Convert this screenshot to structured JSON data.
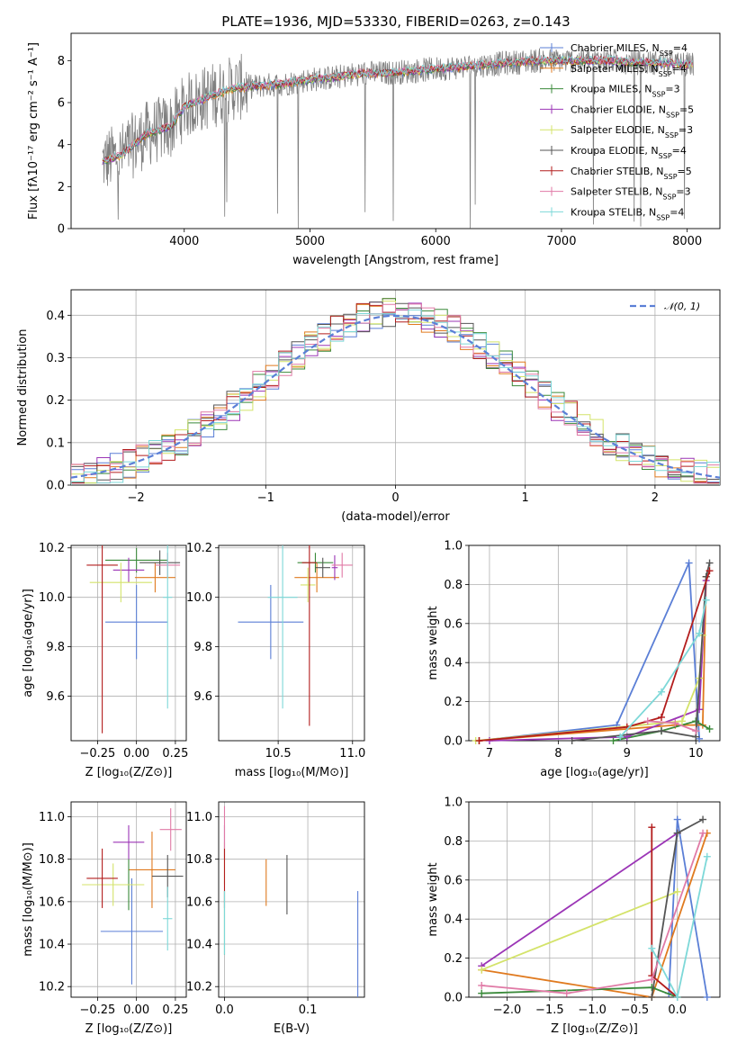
{
  "figure": {
    "title": "PLATE=1936, MJD=53330, FIBERID=0263, z=0.143"
  },
  "colors": [
    "#5b7fd6",
    "#e07a1f",
    "#3a8a3a",
    "#9b35b6",
    "#d4e36a",
    "#555555",
    "#b31d1d",
    "#e07aa6",
    "#7dd8d8"
  ],
  "chart_data": [
    {
      "id": "spectrum",
      "type": "line",
      "xlabel": "wavelength [Angstrom, rest frame]",
      "ylabel": "Flux [fλ10⁻¹⁷ erg cm⁻² s⁻¹ A⁻¹]",
      "xlim": [
        3100,
        8260
      ],
      "ylim": [
        0,
        9.3
      ],
      "xticks": [
        4000,
        5000,
        6000,
        7000,
        8000
      ],
      "yticks": [
        0,
        2,
        4,
        6,
        8
      ],
      "grid": false,
      "legend_position": "top-right",
      "legend": [
        "Chabrier MILES, N_SSP=4",
        "Salpeter MILES, N_SSP=4",
        "Kroupa MILES, N_SSP=3",
        "Chabrier ELODIE, N_SSP=5",
        "Salpeter ELODIE, N_SSP=3",
        "Kroupa ELODIE, N_SSP=4",
        "Chabrier STELIB, N_SSP=5",
        "Salpeter STELIB, N_SSP=3",
        "Kroupa STELIB, N_SSP=4"
      ],
      "data_trend": {
        "x": [
          3350,
          3500,
          3700,
          3900,
          4000,
          4200,
          4400,
          4600,
          4800,
          5000,
          5200,
          5400,
          5600,
          5800,
          6000,
          6200,
          6400,
          6600,
          6800,
          7000,
          7200,
          7400,
          7600,
          7800,
          8000
        ],
        "y": [
          3.2,
          3.5,
          4.5,
          4.9,
          5.8,
          6.3,
          6.7,
          6.8,
          6.9,
          7.1,
          7.2,
          7.4,
          7.4,
          7.5,
          7.6,
          7.7,
          7.8,
          7.9,
          8.0,
          8.0,
          8.0,
          8.0,
          7.9,
          7.9,
          7.8
        ]
      }
    },
    {
      "id": "residuals",
      "type": "histogram",
      "xlabel": "(data-model)/error",
      "ylabel": "Normed distribution",
      "xlim": [
        -2.5,
        2.5
      ],
      "ylim": [
        0,
        0.46
      ],
      "xticks": [
        -2,
        -1,
        0,
        1,
        2
      ],
      "yticks": [
        0.0,
        0.1,
        0.2,
        0.3,
        0.4
      ],
      "grid": true,
      "legend_position": "top-right",
      "legend": [
        "𝒩(0, 1)"
      ],
      "bin_width": 0.1
    },
    {
      "id": "age-vs-Z",
      "type": "scatter",
      "xlabel": "Z [log₁₀(Z/Z⊙)]",
      "ylabel": "age  [log₁₀(age/yr)]",
      "xlim": [
        -0.42,
        0.32
      ],
      "ylim": [
        9.42,
        10.21
      ],
      "xticks": [
        -0.25,
        0.0,
        0.25
      ],
      "xticklabels": [
        "−0.25",
        "0.00",
        "0.25"
      ],
      "yticks": [
        9.6,
        9.8,
        10.0,
        10.2
      ],
      "yticklabels": [
        "9.6",
        "9.8",
        "10.0",
        "10.2"
      ],
      "grid": true,
      "points": [
        {
          "x": 0.0,
          "y": 9.9,
          "ex": 0.2,
          "ey": 0.15
        },
        {
          "x": 0.12,
          "y": 10.08,
          "ex": 0.13,
          "ey": 0.06
        },
        {
          "x": 0.0,
          "y": 10.15,
          "ex": 0.2,
          "ey": 0.05
        },
        {
          "x": -0.05,
          "y": 10.11,
          "ex": 0.1,
          "ey": 0.05
        },
        {
          "x": -0.1,
          "y": 10.06,
          "ex": 0.2,
          "ey": 0.08
        },
        {
          "x": 0.15,
          "y": 10.14,
          "ex": 0.13,
          "ey": 0.05
        },
        {
          "x": -0.22,
          "y": 10.13,
          "ex": 0.1,
          "ey": 0.68
        },
        {
          "x": 0.2,
          "y": 10.13,
          "ex": 0.08,
          "ey": 0.05
        },
        {
          "x": 0.2,
          "y": 10.0,
          "ex": 0.03,
          "ey": 0.45
        }
      ]
    },
    {
      "id": "age-vs-mass",
      "type": "scatter",
      "xlabel": "mass [log₁₀(M/M⊙)]",
      "ylabel": "",
      "xlim": [
        10.1,
        11.08
      ],
      "ylim": [
        9.42,
        10.21
      ],
      "xticks": [
        10.5,
        11.0
      ],
      "xticklabels": [
        "10.5",
        "11.0"
      ],
      "yticks": [
        9.6,
        9.8,
        10.0,
        10.2
      ],
      "yticklabels": [
        "9.6",
        "9.8",
        "10.0",
        "10.2"
      ],
      "grid": true,
      "points": [
        {
          "x": 10.45,
          "y": 9.9,
          "ex": 0.22,
          "ey": 0.15
        },
        {
          "x": 10.76,
          "y": 10.08,
          "ex": 0.15,
          "ey": 0.06
        },
        {
          "x": 10.75,
          "y": 10.14,
          "ex": 0.12,
          "ey": 0.04
        },
        {
          "x": 10.88,
          "y": 10.12,
          "ex": 0.02,
          "ey": 0.05
        },
        {
          "x": 10.7,
          "y": 10.05,
          "ex": 0.05,
          "ey": 0.07
        },
        {
          "x": 10.8,
          "y": 10.12,
          "ex": 0.05,
          "ey": 0.04
        },
        {
          "x": 10.71,
          "y": 10.14,
          "ex": 0.05,
          "ey": 0.66
        },
        {
          "x": 10.93,
          "y": 10.13,
          "ex": 0.07,
          "ey": 0.05
        },
        {
          "x": 10.53,
          "y": 10.0,
          "ex": 0.1,
          "ey": 0.45
        }
      ]
    },
    {
      "id": "mass-weight-vs-age",
      "type": "line",
      "xlabel": "age  [log₁₀(age/yr)]",
      "ylabel": "mass weight",
      "xlim": [
        6.7,
        10.35
      ],
      "ylim": [
        0,
        1.0
      ],
      "xticks": [
        7,
        8,
        9,
        10
      ],
      "yticks": [
        0.0,
        0.2,
        0.4,
        0.6,
        0.8,
        1.0
      ],
      "grid": true,
      "series": [
        {
          "x": [
            6.85,
            8.85,
            9.9,
            10.05
          ],
          "y": [
            0.0,
            0.08,
            0.91,
            0.01
          ]
        },
        {
          "x": [
            6.85,
            9.7,
            10.1,
            10.15
          ],
          "y": [
            0.0,
            0.08,
            0.08,
            0.84
          ]
        },
        {
          "x": [
            8.8,
            9.5,
            10.0,
            10.2
          ],
          "y": [
            0.0,
            0.05,
            0.1,
            0.06
          ]
        },
        {
          "x": [
            7.0,
            9.0,
            10.05,
            10.15
          ],
          "y": [
            0.0,
            0.02,
            0.16,
            0.82
          ]
        },
        {
          "x": [
            6.8,
            9.8,
            10.05,
            10.1
          ],
          "y": [
            0.0,
            0.1,
            0.32,
            0.54
          ]
        },
        {
          "x": [
            8.2,
            9.5,
            10.0,
            10.15,
            10.2
          ],
          "y": [
            0.0,
            0.05,
            0.02,
            0.84,
            0.91
          ]
        },
        {
          "x": [
            6.85,
            9.0,
            9.5,
            10.2
          ],
          "y": [
            0.0,
            0.07,
            0.12,
            0.87
          ]
        },
        {
          "x": [
            9.3,
            9.7,
            10.0
          ],
          "y": [
            0.1,
            0.09,
            0.05
          ]
        },
        {
          "x": [
            8.9,
            9.5,
            10.05,
            10.15
          ],
          "y": [
            0.02,
            0.25,
            0.55,
            0.72
          ]
        }
      ]
    },
    {
      "id": "mass-vs-Z",
      "type": "scatter",
      "xlabel": "Z [log₁₀(Z/Z⊙)]",
      "ylabel": "mass [log₁₀(M/M⊙)]",
      "xlim": [
        -0.42,
        0.32
      ],
      "ylim": [
        10.15,
        11.07
      ],
      "xticks": [
        -0.25,
        0.0,
        0.25
      ],
      "xticklabels": [
        "−0.25",
        "0.00",
        "0.25"
      ],
      "yticks": [
        10.2,
        10.4,
        10.6,
        10.8,
        11.0
      ],
      "yticklabels": [
        "10.2",
        "10.4",
        "10.6",
        "10.8",
        "11.0"
      ],
      "grid": true,
      "points": [
        {
          "x": -0.03,
          "y": 10.46,
          "ex": 0.2,
          "ey": 0.25
        },
        {
          "x": 0.1,
          "y": 10.75,
          "ex": 0.15,
          "ey": 0.18
        },
        {
          "x": -0.05,
          "y": 10.68,
          "ex": 0.05,
          "ey": 0.12
        },
        {
          "x": -0.05,
          "y": 10.88,
          "ex": 0.1,
          "ey": 0.08
        },
        {
          "x": -0.15,
          "y": 10.68,
          "ex": 0.2,
          "ey": 0.1
        },
        {
          "x": 0.2,
          "y": 10.72,
          "ex": 0.1,
          "ey": 0.1
        },
        {
          "x": -0.22,
          "y": 10.71,
          "ex": 0.1,
          "ey": 0.14
        },
        {
          "x": 0.22,
          "y": 10.94,
          "ex": 0.07,
          "ey": 0.1
        },
        {
          "x": 0.2,
          "y": 10.52,
          "ex": 0.03,
          "ey": 0.15
        }
      ]
    },
    {
      "id": "mass-vs-EBV",
      "type": "scatter",
      "xlabel": "E(B-V)",
      "ylabel": "",
      "xlim": [
        -0.007,
        0.168
      ],
      "ylim": [
        10.15,
        11.07
      ],
      "xticks": [
        0.0,
        0.1
      ],
      "xticklabels": [
        "0.0",
        "0.1"
      ],
      "yticks": [
        10.2,
        10.4,
        10.6,
        10.8,
        11.0
      ],
      "yticklabels": [
        "10.2",
        "10.4",
        "10.6",
        "10.8",
        "11.0"
      ],
      "grid": true,
      "points": [
        {
          "x": 0.16,
          "y": 10.4,
          "ex": 0.0,
          "ey": 0.25
        },
        {
          "x": 0.05,
          "y": 10.69,
          "ex": 0.0,
          "ey": 0.11
        },
        {
          "x": 0.0,
          "y": 10.5,
          "ex": 0.0,
          "ey": 0.15
        },
        {
          "x": 0.0,
          "y": 10.88,
          "ex": 0.0,
          "ey": 0.08
        },
        {
          "x": 0.0,
          "y": 10.78,
          "ex": 0.0,
          "ey": 0.1
        },
        {
          "x": 0.075,
          "y": 10.68,
          "ex": 0.0,
          "ey": 0.14
        },
        {
          "x": 0.0,
          "y": 10.71,
          "ex": 0.0,
          "ey": 0.14
        },
        {
          "x": 0.0,
          "y": 10.95,
          "ex": 0.0,
          "ey": 0.1
        },
        {
          "x": 0.0,
          "y": 10.5,
          "ex": 0.0,
          "ey": 0.15
        }
      ]
    },
    {
      "id": "mass-weight-vs-Z",
      "type": "line",
      "xlabel": "Z [log₁₀(Z/Z⊙)]",
      "ylabel": "mass weight",
      "xlim": [
        -2.45,
        0.5
      ],
      "ylim": [
        0,
        1.0
      ],
      "xticks": [
        -2.0,
        -1.5,
        -1.0,
        -0.5,
        0.0
      ],
      "xticklabels": [
        "−2.0",
        "−1.5",
        "−1.0",
        "−0.5",
        "0.0"
      ],
      "yticks": [
        0.0,
        0.2,
        0.4,
        0.6,
        0.8,
        1.0
      ],
      "grid": true,
      "series": [
        {
          "x": [
            -0.1,
            0.0,
            0.35
          ],
          "y": [
            0.02,
            0.91,
            0.0
          ]
        },
        {
          "x": [
            -2.3,
            -0.3,
            0.35
          ],
          "y": [
            0.14,
            0.0,
            0.84
          ]
        },
        {
          "x": [
            -2.3,
            -0.3,
            0.0
          ],
          "y": [
            0.02,
            0.05,
            0.0
          ]
        },
        {
          "x": [
            -2.3,
            0.0
          ],
          "y": [
            0.16,
            0.84
          ]
        },
        {
          "x": [
            -2.3,
            0.0
          ],
          "y": [
            0.14,
            0.54
          ]
        },
        {
          "x": [
            -0.3,
            0.0,
            0.3
          ],
          "y": [
            0.0,
            0.84,
            0.91
          ]
        },
        {
          "x": [
            -0.3,
            -0.3,
            0.0
          ],
          "y": [
            0.87,
            0.11,
            0.0
          ]
        },
        {
          "x": [
            -2.3,
            -1.3,
            -0.3,
            0.3
          ],
          "y": [
            0.06,
            0.02,
            0.09,
            0.84
          ]
        },
        {
          "x": [
            -0.3,
            0.0,
            0.35
          ],
          "y": [
            0.25,
            0.0,
            0.72
          ]
        }
      ]
    }
  ]
}
